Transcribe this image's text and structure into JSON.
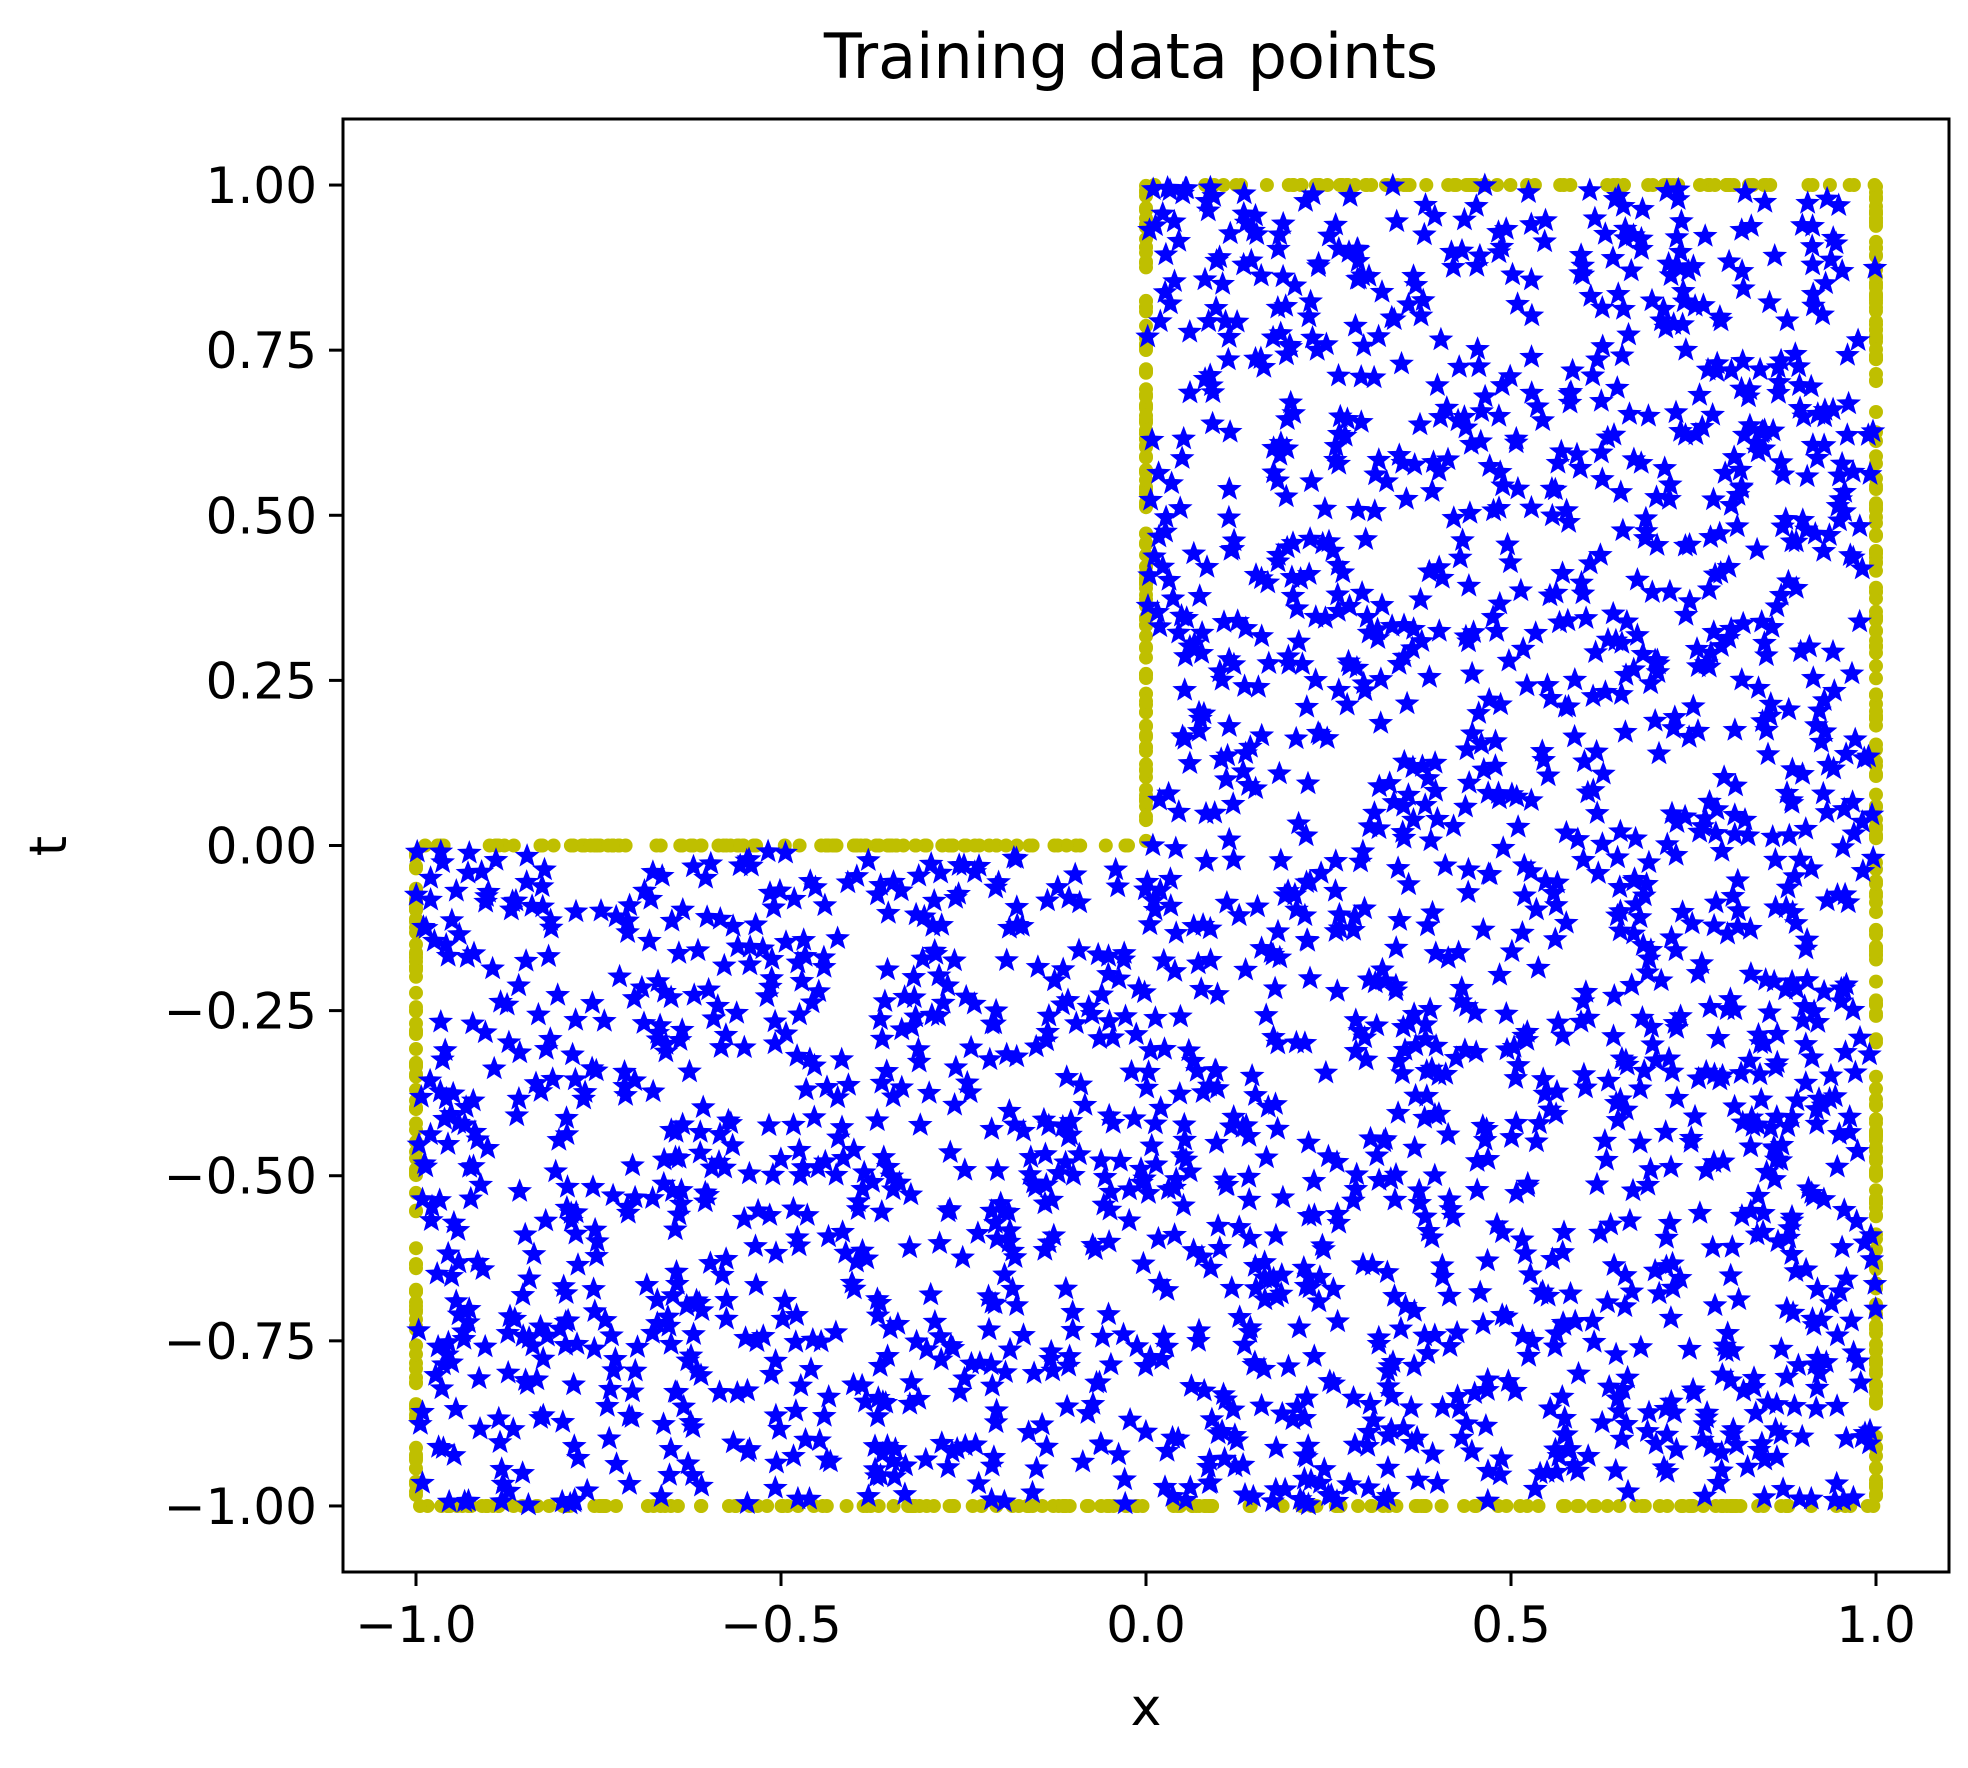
{
  "chart_data": {
    "type": "scatter",
    "title": "Training data points",
    "xlabel": "x",
    "ylabel": "t",
    "xlim": [
      -1.1,
      1.1
    ],
    "ylim": [
      -1.1,
      1.1
    ],
    "xticks": [
      -1.0,
      -0.5,
      0.0,
      0.5,
      1.0
    ],
    "xtick_labels": [
      "−1.0",
      "−0.5",
      "0.0",
      "0.5",
      "1.0"
    ],
    "yticks": [
      1.0,
      0.75,
      0.5,
      0.25,
      0.0,
      -0.25,
      -0.5,
      -0.75,
      -1.0
    ],
    "ytick_labels": [
      "1.00",
      "0.75",
      "0.50",
      "0.25",
      "0.00",
      "−0.25",
      "−0.50",
      "−0.75",
      "−1.00"
    ],
    "grid": false,
    "legend": "none",
    "domain_shape": "L-shaped region: [-1,1]×[-1,0] ∪ [0,1]×[0,1]",
    "series": [
      {
        "role": "boundary",
        "marker": "dot",
        "color": "#bfbf00",
        "vertices": [
          [
            -1,
            -1
          ],
          [
            1,
            -1
          ],
          [
            1,
            1
          ],
          [
            0,
            1
          ],
          [
            0,
            0
          ],
          [
            -1,
            0
          ],
          [
            -1,
            -1
          ]
        ],
        "point_count": 800
      },
      {
        "role": "interior",
        "marker": "star",
        "color": "#0000ff",
        "distribution": "uniform random inside domain",
        "point_count": 2200
      }
    ]
  }
}
